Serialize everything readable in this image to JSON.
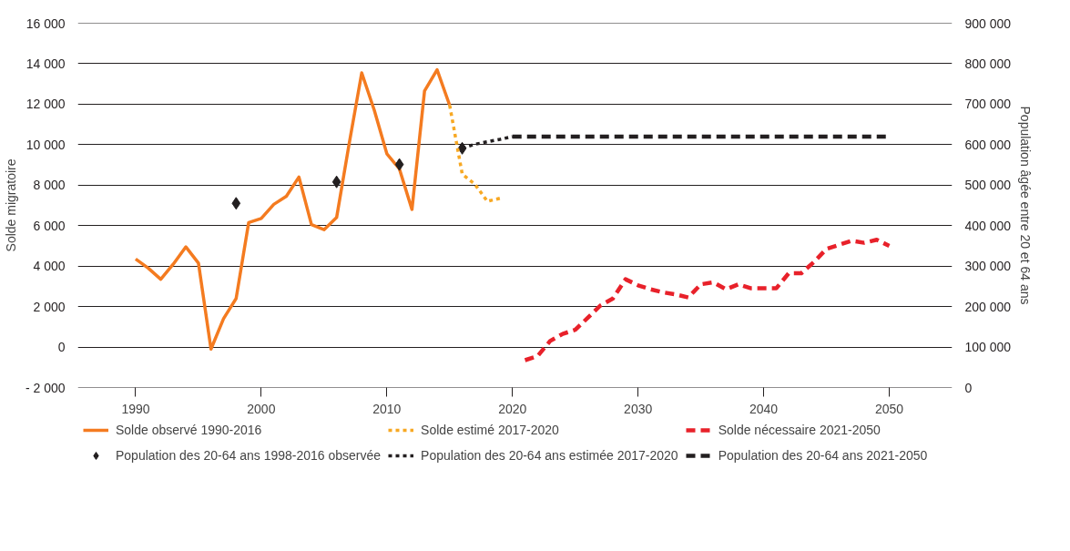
{
  "chart_data": {
    "type": "line",
    "xlabel": null,
    "ylabel": "Solde migratoire",
    "y2label": "Population âgée entre 20 et 64 ans",
    "xlim": [
      1985.4,
      2055.0
    ],
    "xticks": [
      1990,
      2000,
      2010,
      2020,
      2030,
      2040,
      2050
    ],
    "ylim": [
      -2000,
      16000
    ],
    "yticks": [
      {
        "value": -2000,
        "label": "- 2 000"
      },
      0,
      {
        "value": 2000,
        "label": "2 000"
      },
      {
        "value": 4000,
        "label": "4 000"
      },
      {
        "value": 6000,
        "label": "6 000"
      },
      {
        "value": 8000,
        "label": "8 000"
      },
      {
        "value": 10000,
        "label": "10 000"
      },
      {
        "value": 12000,
        "label": "12 000"
      },
      {
        "value": 14000,
        "label": "14 000"
      },
      {
        "value": 16000,
        "label": "16 000"
      }
    ],
    "y2lim": [
      0,
      900000
    ],
    "y2ticks": [
      0,
      {
        "value": 100000,
        "label": "100 000"
      },
      {
        "value": 200000,
        "label": "200 000"
      },
      {
        "value": 300000,
        "label": "300 000"
      },
      {
        "value": 400000,
        "label": "400 000"
      },
      {
        "value": 500000,
        "label": "500 000"
      },
      {
        "value": 600000,
        "label": "600 000"
      },
      {
        "value": 700000,
        "label": "700 000"
      },
      {
        "value": 800000,
        "label": "800 000"
      },
      {
        "value": 900000,
        "label": "900 000"
      }
    ],
    "grid": "y",
    "legend": "bottom",
    "series": [
      {
        "name": "Solde observé 1990-2016",
        "line_style": "solid",
        "color": "#f47b20",
        "x": [
          1990,
          1991,
          1992,
          1993,
          1994,
          1995,
          1996,
          1997,
          1998,
          1999,
          2000,
          2001,
          2002,
          2003,
          2004,
          2005,
          2006,
          2007,
          2008,
          2009,
          2010,
          2011,
          2012,
          2013,
          2014,
          2015
        ],
        "values": [
          4350,
          3900,
          3350,
          4100,
          4950,
          4150,
          -100,
          1400,
          2400,
          6150,
          6350,
          7050,
          7450,
          8400,
          6050,
          5800,
          6400,
          10050,
          13550,
          11700,
          9550,
          8800,
          6800,
          12650,
          13700,
          11950
        ]
      },
      {
        "name": "Population des 20-64 ans 1998-2016 observée",
        "type": "scatter",
        "marker": "diamond",
        "axis": "y2",
        "color": "#231f20",
        "x": [
          1998,
          2006,
          2011,
          2016
        ],
        "values": [
          455000,
          508000,
          551000,
          591000
        ]
      },
      {
        "name": "Solde estimé 2017-2020",
        "line_style": "dotted",
        "color": "#f7a823",
        "x": [
          2015,
          2016,
          2017,
          2018,
          2019
        ],
        "values": [
          11950,
          8550,
          8050,
          7200,
          7350
        ]
      },
      {
        "name": "Population des 20-64 ans estimée 2017-2020",
        "line_style": "dotted",
        "axis": "y2",
        "color": "#231f20",
        "x": [
          2016,
          2017,
          2018,
          2019,
          2020
        ],
        "values": [
          591000,
          601000,
          607000,
          613000,
          620000
        ]
      },
      {
        "name": "Solde nécessaire 2021-2050",
        "line_style": "dashed",
        "color": "#e8212a",
        "x": [
          2021,
          2022,
          2023,
          2024,
          2025,
          2026,
          2027,
          2028,
          2029,
          2030,
          2031,
          2032,
          2033,
          2034,
          2035,
          2036,
          2037,
          2038,
          2039,
          2040,
          2041,
          2042,
          2043,
          2044,
          2045,
          2046,
          2047,
          2048,
          2049,
          2050
        ],
        "values": [
          -650,
          -450,
          300,
          650,
          850,
          1450,
          2050,
          2400,
          3350,
          3050,
          2850,
          2700,
          2600,
          2450,
          3100,
          3200,
          2850,
          3100,
          2900,
          2900,
          2900,
          3650,
          3650,
          4200,
          4850,
          5050,
          5250,
          5150,
          5300,
          5000
        ]
      },
      {
        "name": "Population des 20-64 ans 2021-2050",
        "line_style": "dashed",
        "axis": "y2",
        "color": "#231f20",
        "x": [
          2020,
          2050
        ],
        "values": [
          620000,
          620000
        ]
      }
    ]
  }
}
